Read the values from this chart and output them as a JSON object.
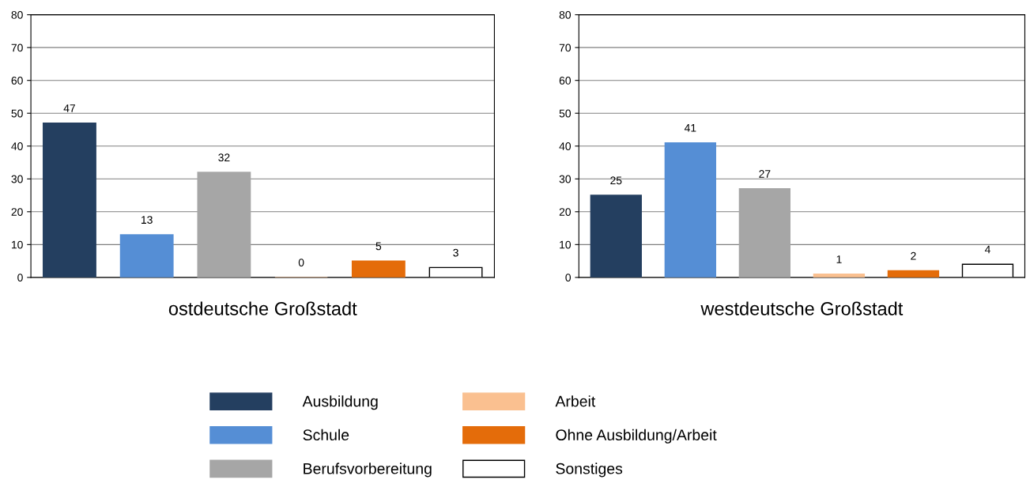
{
  "chart_data": [
    {
      "type": "bar",
      "xlabel": "ostdeutsche Großstadt",
      "categories": [
        null
      ],
      "ylim": [
        0,
        80
      ],
      "yticks": [
        0,
        10,
        20,
        30,
        40,
        50,
        60,
        70,
        80
      ],
      "grid": "y",
      "data_labels": true,
      "legend": "bottom",
      "series": [
        {
          "name": "Ausbildung",
          "color": "#243f60",
          "values": [
            47
          ]
        },
        {
          "name": "Schule",
          "color": "#558ed5",
          "values": [
            13
          ]
        },
        {
          "name": "Berufsvorbereitung",
          "color": "#a6a6a6",
          "values": [
            32
          ]
        },
        {
          "name": "Arbeit",
          "color": "#fac090",
          "values": [
            0
          ]
        },
        {
          "name": "Ohne Ausbildung/Arbeit",
          "color": "#e46c0a",
          "values": [
            5
          ]
        },
        {
          "name": "Sonstiges",
          "color": "#ffffff",
          "values": [
            3
          ]
        }
      ]
    },
    {
      "type": "bar",
      "xlabel": "westdeutsche Großstadt",
      "categories": [
        null
      ],
      "ylim": [
        0,
        80
      ],
      "yticks": [
        0,
        10,
        20,
        30,
        40,
        50,
        60,
        70,
        80
      ],
      "grid": "y",
      "data_labels": true,
      "series": [
        {
          "color": "#243f60",
          "values": [
            25
          ]
        },
        {
          "color": "#558ed5",
          "values": [
            41
          ]
        },
        {
          "color": "#a6a6a6",
          "values": [
            27
          ]
        },
        {
          "color": "#fac090",
          "values": [
            1
          ]
        },
        {
          "color": "#e46c0a",
          "values": [
            2
          ]
        },
        {
          "color": "#ffffff",
          "values": [
            4
          ]
        }
      ]
    }
  ]
}
